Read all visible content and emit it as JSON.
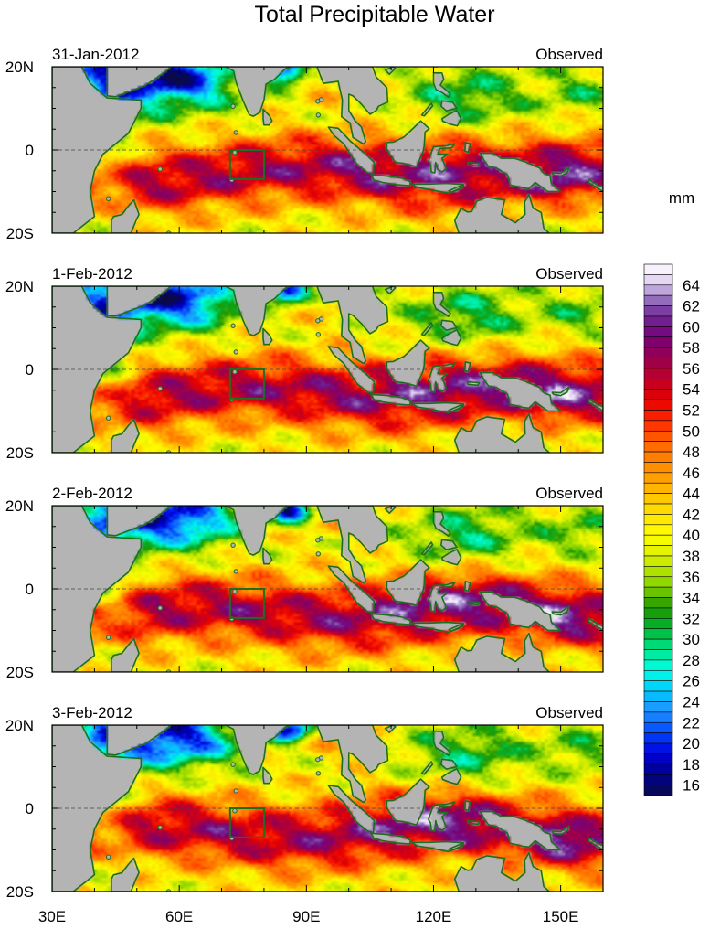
{
  "chart_data": {
    "type": "heatmap",
    "title": "Total Precipitable Water",
    "units": "mm",
    "panels": [
      {
        "date": "31-Jan-2012",
        "label": "Observed"
      },
      {
        "date": "1-Feb-2012",
        "label": "Observed"
      },
      {
        "date": "2-Feb-2012",
        "label": "Observed"
      },
      {
        "date": "3-Feb-2012",
        "label": "Observed"
      }
    ],
    "x_range": [
      30,
      160
    ],
    "y_range": [
      -20,
      20
    ],
    "x_ticks": [
      {
        "value": 30,
        "label": "30E"
      },
      {
        "value": 60,
        "label": "60E"
      },
      {
        "value": 90,
        "label": "90E"
      },
      {
        "value": 120,
        "label": "120E"
      },
      {
        "value": 150,
        "label": "150E"
      }
    ],
    "y_ticks": [
      {
        "value": 20,
        "label": "20N"
      },
      {
        "value": 0,
        "label": "0"
      },
      {
        "value": -20,
        "label": "20S"
      }
    ],
    "equator_line": "dashed",
    "box_region": {
      "lon": [
        72,
        80
      ],
      "lat": [
        -7,
        0
      ]
    },
    "colorbar": {
      "min": 15,
      "max": 66,
      "step": 1,
      "labels": [
        16,
        18,
        20,
        22,
        24,
        26,
        28,
        30,
        32,
        34,
        36,
        38,
        40,
        42,
        44,
        46,
        48,
        50,
        52,
        54,
        56,
        58,
        60,
        62,
        64
      ],
      "stops": [
        {
          "v": 15,
          "c": "#0a0a4a"
        },
        {
          "v": 17,
          "c": "#00008c"
        },
        {
          "v": 19,
          "c": "#0000dc"
        },
        {
          "v": 21,
          "c": "#0046ff"
        },
        {
          "v": 23,
          "c": "#1e90ff"
        },
        {
          "v": 25,
          "c": "#00c8ff"
        },
        {
          "v": 27,
          "c": "#00ffe6"
        },
        {
          "v": 29,
          "c": "#00e68c"
        },
        {
          "v": 31,
          "c": "#00b432"
        },
        {
          "v": 33,
          "c": "#1e9600"
        },
        {
          "v": 35,
          "c": "#82d200"
        },
        {
          "v": 38,
          "c": "#dcf000"
        },
        {
          "v": 40,
          "c": "#ffff00"
        },
        {
          "v": 43,
          "c": "#ffd200"
        },
        {
          "v": 46,
          "c": "#ff9600"
        },
        {
          "v": 49,
          "c": "#ff6400"
        },
        {
          "v": 51,
          "c": "#ff2800"
        },
        {
          "v": 53,
          "c": "#e60000"
        },
        {
          "v": 55,
          "c": "#be0028"
        },
        {
          "v": 57,
          "c": "#960050"
        },
        {
          "v": 59,
          "c": "#780078"
        },
        {
          "v": 61,
          "c": "#6e2896"
        },
        {
          "v": 63,
          "c": "#a082c8"
        },
        {
          "v": 64,
          "c": "#dcc8f0"
        },
        {
          "v": 66,
          "c": "#ffffff"
        }
      ]
    }
  },
  "colors": {
    "land": "#b4b4b4",
    "coast": "#1f6e1f",
    "box": "#1f6e1f"
  }
}
